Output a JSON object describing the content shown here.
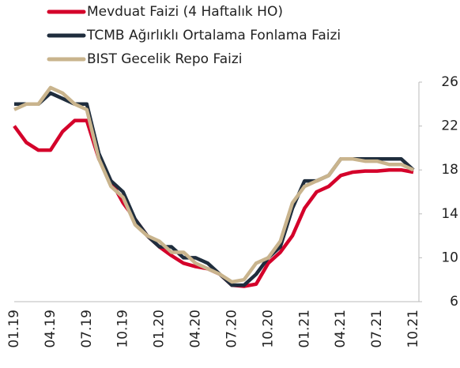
{
  "chart_data": {
    "type": "line",
    "categories": [
      "01.19",
      null,
      null,
      "04.19",
      null,
      null,
      "07.19",
      null,
      null,
      "10.19",
      null,
      null,
      "01.20",
      null,
      null,
      "04.20",
      null,
      null,
      "07.20",
      null,
      null,
      "10.20",
      null,
      null,
      "01.21",
      null,
      null,
      "04.21",
      null,
      null,
      "07.21",
      null,
      null,
      "10.21"
    ],
    "series": [
      {
        "name": "Mevduat Faizi (4 Haftalık HO)",
        "color": "#d4002a",
        "values": [
          22,
          20.5,
          19.8,
          19.8,
          21.5,
          22.5,
          22.5,
          19,
          17,
          15,
          13.5,
          12,
          11,
          10.2,
          9.5,
          9.2,
          9,
          8.5,
          7.5,
          7.4,
          7.6,
          9.5,
          10.5,
          12,
          14.5,
          16,
          16.5,
          17.5,
          17.8,
          17.9,
          17.9,
          18,
          18,
          17.8
        ]
      },
      {
        "name": "TCMB Ağırlıklı Ortalama Fonlama Faizi",
        "color": "#1f2d3d",
        "values": [
          24,
          24,
          24,
          25,
          24.5,
          24,
          24,
          19.5,
          17,
          16,
          13.5,
          12,
          11,
          11,
          10,
          10,
          9.5,
          8.5,
          7.5,
          7.5,
          8.5,
          10,
          11,
          14.5,
          17,
          17,
          17.5,
          19,
          19,
          19,
          19,
          19,
          19,
          18
        ]
      },
      {
        "name": "BIST Gecelik Repo Faizi",
        "color": "#c9b48d",
        "values": [
          23.5,
          24,
          24,
          25.5,
          25,
          24,
          23.5,
          19,
          16.5,
          15.5,
          13,
          12,
          11.5,
          10.5,
          10.5,
          9.5,
          9,
          8.5,
          7.8,
          8,
          9.5,
          10,
          11.5,
          15,
          16.5,
          17,
          17.5,
          19,
          19,
          18.8,
          18.8,
          18.5,
          18.5,
          18
        ]
      }
    ],
    "ylim": [
      6,
      26
    ],
    "yticks": [
      6,
      10,
      14,
      18,
      22,
      26
    ],
    "y_axis_side": "right"
  }
}
